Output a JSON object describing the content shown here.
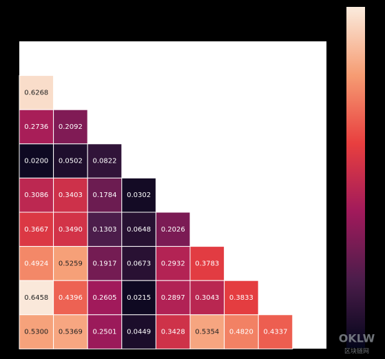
{
  "chart_data": {
    "type": "heatmap",
    "rows": [
      [
        0.6268
      ],
      [
        0.2736,
        0.2092
      ],
      [
        0.02,
        0.0502,
        0.0822
      ],
      [
        0.3086,
        0.3403,
        0.1784,
        0.0302
      ],
      [
        0.3667,
        0.349,
        0.1303,
        0.0648,
        0.2026
      ],
      [
        0.4924,
        0.5259,
        0.1917,
        0.0673,
        0.2932,
        0.3783
      ],
      [
        0.6458,
        0.4396,
        0.2605,
        0.0215,
        0.2897,
        0.3043,
        0.3833
      ],
      [
        0.53,
        0.5369,
        0.2501,
        0.0449,
        0.3428,
        0.5354,
        0.482,
        0.4337
      ]
    ],
    "value_labels": [
      [
        "0.6268"
      ],
      [
        "0.2736",
        "0.2092"
      ],
      [
        "0.0200",
        "0.0502",
        "0.0822"
      ],
      [
        "0.3086",
        "0.3403",
        "0.1784",
        "0.0302"
      ],
      [
        "0.3667",
        "0.3490",
        "0.1303",
        "0.0648",
        "0.2026"
      ],
      [
        "0.4924",
        "0.5259",
        "0.1917",
        "0.0673",
        "0.2932",
        "0.3783"
      ],
      [
        "0.6458",
        "0.4396",
        "0.2605",
        "0.0215",
        "0.2897",
        "0.3043",
        "0.3833"
      ],
      [
        "0.5300",
        "0.5369",
        "0.2501",
        "0.0449",
        "0.3428",
        "0.5354",
        "0.4820",
        "0.4337"
      ]
    ],
    "clim": [
      0,
      0.65
    ],
    "colormap": [
      "#03051a",
      "#4c1d4b",
      "#a11a5b",
      "#e83f3f",
      "#f69c73",
      "#faebdd"
    ],
    "watermark": [
      "OKLW",
      "区块链网"
    ]
  }
}
